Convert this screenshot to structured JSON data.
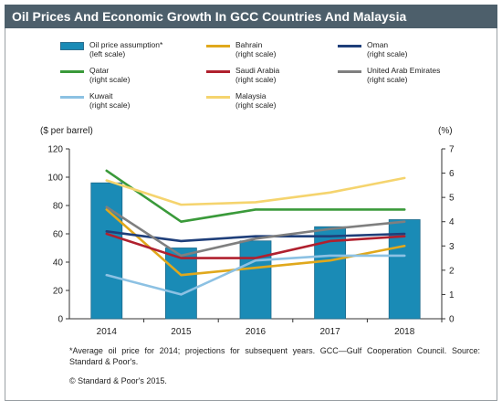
{
  "header": {
    "title": "Oil Prices And Economic Growth In GCC Countries And Malaysia"
  },
  "legend": [
    {
      "label": "Oil price assumption*",
      "sub": "(left scale)",
      "color": "#1a8bb6",
      "kind": "bar"
    },
    {
      "label": "Bahrain",
      "sub": "(right scale)",
      "color": "#e0a81c",
      "kind": "line"
    },
    {
      "label": "Oman",
      "sub": "(right scale)",
      "color": "#1f3f7a",
      "kind": "line"
    },
    {
      "label": "Qatar",
      "sub": "(right scale)",
      "color": "#3a9a3a",
      "kind": "line"
    },
    {
      "label": "Saudi Arabia",
      "sub": "(right scale)",
      "color": "#b0202e",
      "kind": "line"
    },
    {
      "label": "United Arab Emirates",
      "sub": "(right scale)",
      "color": "#7f7f7f",
      "kind": "line"
    },
    {
      "label": "Kuwait",
      "sub": "(right scale)",
      "color": "#8cc1e3",
      "kind": "line"
    },
    {
      "label": "Malaysia",
      "sub": "(right scale)",
      "color": "#f5d46e",
      "kind": "line"
    }
  ],
  "chart_data": {
    "type": "bar",
    "title": "Oil Prices And Economic Growth In GCC Countries And Malaysia",
    "ylabel_left": "($ per barrel)",
    "ylabel_right": "(%)",
    "categories": [
      "2014",
      "2015",
      "2016",
      "2017",
      "2018"
    ],
    "ylim_left": [
      0,
      120
    ],
    "ylim_right": [
      0,
      7
    ],
    "left_ticks": [
      "0",
      "20",
      "40",
      "60",
      "80",
      "100",
      "120"
    ],
    "right_ticks": [
      "0",
      "1",
      "2",
      "3",
      "4",
      "5",
      "6",
      "7"
    ],
    "bars": {
      "name": "Oil price assumption*",
      "axis": "left",
      "values": [
        96,
        50,
        55,
        65,
        70
      ]
    },
    "series": [
      {
        "name": "Bahrain",
        "axis": "right",
        "values": [
          4.5,
          1.8,
          2.1,
          2.4,
          3.0
        ]
      },
      {
        "name": "Oman",
        "axis": "right",
        "values": [
          3.6,
          3.2,
          3.4,
          3.4,
          3.5
        ]
      },
      {
        "name": "Qatar",
        "axis": "right",
        "values": [
          6.1,
          4.0,
          4.5,
          4.5,
          4.5
        ]
      },
      {
        "name": "Saudi Arabia",
        "axis": "right",
        "values": [
          3.5,
          2.5,
          2.5,
          3.2,
          3.4
        ]
      },
      {
        "name": "United Arab Emirates",
        "axis": "right",
        "values": [
          4.6,
          2.6,
          3.3,
          3.7,
          4.0
        ]
      },
      {
        "name": "Kuwait",
        "axis": "right",
        "values": [
          1.8,
          1.0,
          2.4,
          2.6,
          2.6
        ]
      },
      {
        "name": "Malaysia",
        "axis": "right",
        "values": [
          5.7,
          4.7,
          4.8,
          5.2,
          5.8
        ]
      }
    ],
    "grid": false
  },
  "footnote": "*Average oil price for 2014; projections for subsequent years. GCC—Gulf Cooperation Council. Source: Standard & Poor's.",
  "copyright": "© Standard & Poor's 2015."
}
